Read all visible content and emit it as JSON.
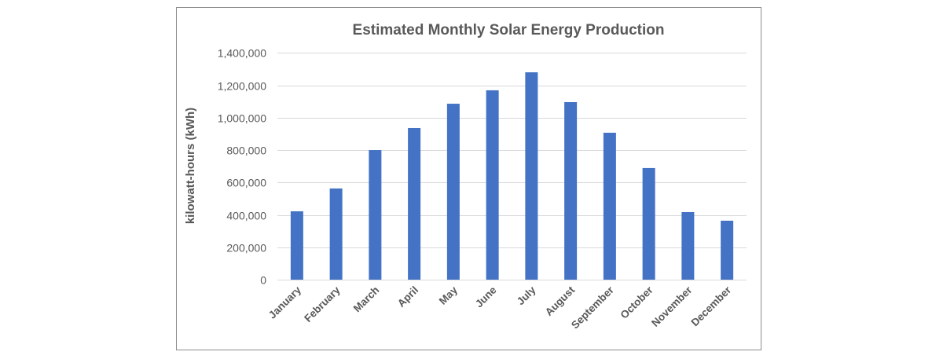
{
  "chart_data": {
    "type": "bar",
    "title": "Estimated Monthly Solar Energy Production",
    "xlabel": "",
    "ylabel": "kilowatt-hours (kWh)",
    "ylim": [
      0,
      1400000
    ],
    "yticks": [
      0,
      200000,
      400000,
      600000,
      800000,
      1000000,
      1200000,
      1400000
    ],
    "ytick_labels": [
      "0",
      "200,000",
      "400,000",
      "600,000",
      "800,000",
      "1,000,000",
      "1,200,000",
      "1,400,000"
    ],
    "grid": true,
    "categories": [
      "January",
      "February",
      "March",
      "April",
      "May",
      "June",
      "July",
      "August",
      "September",
      "October",
      "November",
      "December"
    ],
    "values": [
      422000,
      563000,
      800000,
      936000,
      1086000,
      1169000,
      1280000,
      1096000,
      907000,
      689000,
      417000,
      364000
    ],
    "bar_color": "#4472C4",
    "grid_color": "#D9D9D9",
    "text_color": "#595959"
  }
}
